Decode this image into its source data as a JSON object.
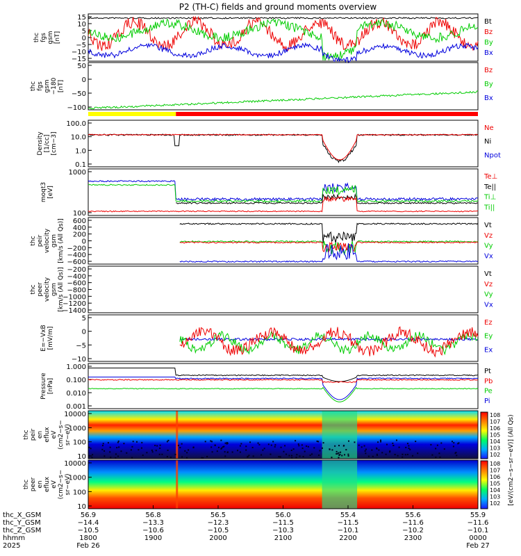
{
  "chart_data": {
    "type": "line",
    "title": "P2 (TH-C) fields and ground moments overview",
    "x_tick_labels": {
      "thc_X_GSM": [
        "56.9",
        "56.8",
        "56.5",
        "56.0",
        "55.4",
        "55.6",
        "55.9"
      ],
      "thc_Y_GSM": [
        "−14.4",
        "−13.3",
        "−12.3",
        "−11.5",
        "−11.5",
        "−11.6",
        "−11.6"
      ],
      "thc_Z_GSM": [
        "−10.5",
        "−10.6",
        "−10.5",
        "−10.3",
        "−10.1",
        "−10.2",
        "−10.1"
      ],
      "hhmm": [
        "1800",
        "1900",
        "2000",
        "2100",
        "2200",
        "2300",
        "0000"
      ]
    },
    "x_row_labels": [
      "thc_X_GSM",
      "thc_Y_GSM",
      "thc_Z_GSM",
      "hhmm",
      "2025"
    ],
    "x_dates": {
      "start": "Feb 26",
      "end": "Feb 27"
    },
    "panels": [
      {
        "id": "fgs",
        "ylabel": [
          "thc",
          "fgs",
          "gsm",
          "[nT]"
        ],
        "yticks": [
          "15",
          "10",
          "5",
          "0",
          "−5",
          "−10",
          "−15"
        ],
        "legend": [
          {
            "name": "Bt",
            "color": "#000000"
          },
          {
            "name": "Bz",
            "color": "#ee0000"
          },
          {
            "name": "By",
            "color": "#00cc00"
          },
          {
            "name": "Bx",
            "color": "#0000dd"
          }
        ]
      },
      {
        "id": "fgs_dsl",
        "ylabel": [
          "thc",
          "fgs",
          "gsm",
          "−180",
          "[nT]"
        ],
        "yticks": [
          "50",
          "0",
          "−50",
          "−100"
        ],
        "legend": [
          {
            "name": "Bz",
            "color": "#ee0000"
          },
          {
            "name": "By",
            "color": "#00cc00"
          },
          {
            "name": "Bx",
            "color": "#0000dd"
          }
        ]
      },
      {
        "id": "density",
        "ylabel": [
          "Density",
          "[1/cc]",
          "[cm−3]"
        ],
        "yticks": [
          "100.0",
          "10.0",
          "1.0",
          "0.1"
        ],
        "legend": [
          {
            "name": "Ne",
            "color": "#ee0000"
          },
          {
            "name": "Ni",
            "color": "#000000"
          },
          {
            "name": "Npot",
            "color": "#0000dd"
          }
        ]
      },
      {
        "id": "temp",
        "ylabel": [
          "moqt3",
          "[eV]"
        ],
        "yticks": [
          "1000",
          "100"
        ],
        "legend": [
          {
            "name": "Te⊥",
            "color": "#ee0000"
          },
          {
            "name": "Te||",
            "color": "#000000"
          },
          {
            "name": "Ti⊥",
            "color": "#00cc00"
          },
          {
            "name": "Ti||",
            "color": "#00cc00"
          }
        ]
      },
      {
        "id": "vel_i",
        "ylabel": [
          "thc",
          "peir",
          "velocity",
          "gsm",
          "[km/s (All Qs)]"
        ],
        "yticks": [
          "600",
          "400",
          "200",
          "0",
          "−200",
          "−400",
          "−600"
        ],
        "legend": [
          {
            "name": "Vt",
            "color": "#000000"
          },
          {
            "name": "Vz",
            "color": "#ee0000"
          },
          {
            "name": "Vy",
            "color": "#00cc00"
          },
          {
            "name": "Vx",
            "color": "#0000dd"
          }
        ]
      },
      {
        "id": "vel_e",
        "ylabel": [
          "thc",
          "peer",
          "velocity",
          "gsm",
          "[km/s (All Qs)]"
        ],
        "yticks": [
          "−200",
          "−400",
          "−600",
          "−800",
          "−1000",
          "−1200",
          "−1400"
        ],
        "legend": [
          {
            "name": "Vt",
            "color": "#000000"
          },
          {
            "name": "Vz",
            "color": "#ee0000"
          },
          {
            "name": "Vy",
            "color": "#00cc00"
          },
          {
            "name": "Vx",
            "color": "#0000dd"
          }
        ]
      },
      {
        "id": "efield",
        "ylabel": [
          "E=−VxB",
          "[mV/m]"
        ],
        "yticks": [
          "5",
          "0",
          "−5",
          "−10"
        ],
        "legend": [
          {
            "name": "Ez",
            "color": "#ee0000"
          },
          {
            "name": "Ey",
            "color": "#00cc00"
          },
          {
            "name": "Ex",
            "color": "#0000dd"
          }
        ]
      },
      {
        "id": "pressure",
        "ylabel": [
          "Pressure",
          "[nPa]"
        ],
        "yticks": [
          "1.000",
          "0.100",
          "0.010",
          "0.001"
        ],
        "legend": [
          {
            "name": "Pt",
            "color": "#000000"
          },
          {
            "name": "Pb",
            "color": "#ee0000"
          },
          {
            "name": "Pe",
            "color": "#00cc00"
          },
          {
            "name": "Pi",
            "color": "#0000dd"
          }
        ]
      },
      {
        "id": "spec_i",
        "ylabel": [
          "thc",
          "peir",
          "en",
          "eflux",
          "eV",
          "(cm2−s−",
          "sr−eV)"
        ],
        "yticks": [
          "10000",
          "1000",
          "100",
          "10"
        ]
      },
      {
        "id": "spec_e",
        "ylabel": [
          "thc",
          "peer",
          "en",
          "eflux",
          "eV",
          "(cm2−s−",
          "sr−eV)"
        ],
        "yticks": [
          "10000",
          "1000",
          "100",
          "10"
        ]
      }
    ],
    "colorbar": {
      "label": "[eV/(cm2−s−sr−eV)] (All Qs)",
      "ticks_upper": [
        "10^8",
        "10^7",
        "10^6",
        "10^5",
        "10^4",
        "10^3",
        "10^2"
      ],
      "ticks_lower": [
        "10^8",
        "10^7",
        "10^6",
        "10^5",
        "10^4",
        "10^3",
        "10^2"
      ]
    },
    "mode_bar": {
      "segments": [
        {
          "from_hhmm": "1800",
          "to_hhmm": "1910",
          "color": "#ffff00"
        },
        {
          "from_hhmm": "1910",
          "to_hhmm": "0000",
          "color": "#ff0000"
        }
      ]
    }
  }
}
